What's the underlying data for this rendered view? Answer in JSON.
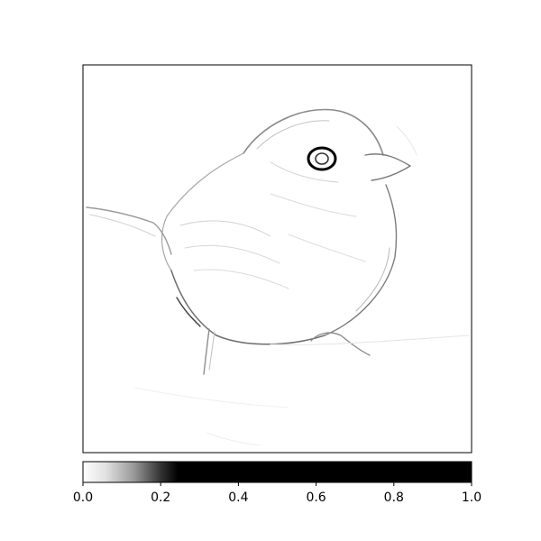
{
  "chart_data": {
    "type": "heatmap",
    "title": "",
    "xlabel": "",
    "ylabel": "",
    "image_subject": "saliency map of a small bird (edge-like gray strokes on white)",
    "axes_ticks_visible": false,
    "grid": false,
    "colorbar": {
      "orientation": "horizontal",
      "placement": "bottom",
      "range": [
        0.0,
        1.0
      ],
      "colormap": "gray_r, saturating to black at about 0.25",
      "saturation_value": 0.25,
      "ticks": [
        0.0,
        0.2,
        0.4,
        0.6,
        0.8,
        1.0
      ],
      "tick_labels": [
        "0.0",
        "0.2",
        "0.4",
        "0.6",
        "0.8",
        "1.0"
      ]
    }
  }
}
